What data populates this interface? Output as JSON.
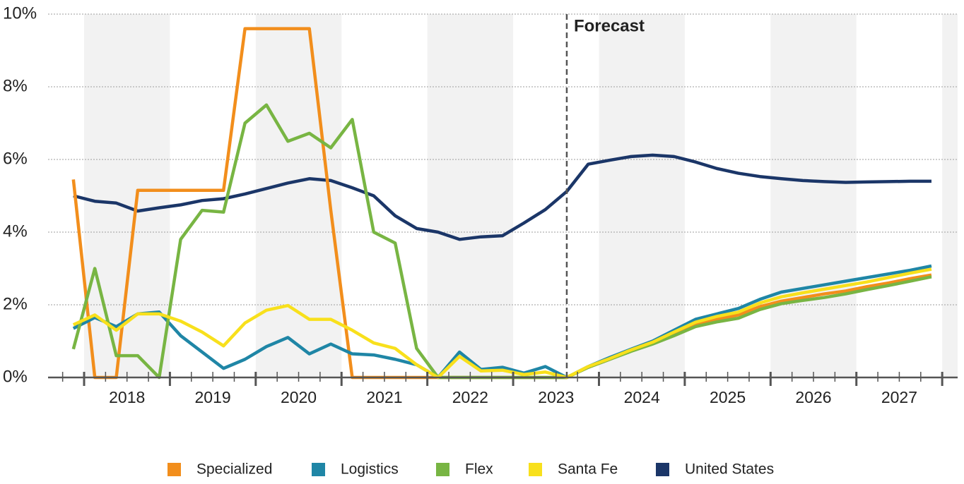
{
  "chart_data": {
    "type": "line",
    "x": [
      2017.875,
      2018.125,
      2018.375,
      2018.625,
      2018.875,
      2019.125,
      2019.375,
      2019.625,
      2019.875,
      2020.125,
      2020.375,
      2020.625,
      2020.875,
      2021.125,
      2021.375,
      2021.625,
      2021.875,
      2022.125,
      2022.375,
      2022.625,
      2022.875,
      2023.125,
      2023.375,
      2023.625,
      2023.875,
      2024.125,
      2024.375,
      2024.625,
      2024.875,
      2025.125,
      2025.375,
      2025.625,
      2025.875,
      2026.125,
      2026.375,
      2026.625,
      2026.875,
      2027.125,
      2027.375,
      2027.625,
      2027.875
    ],
    "xlim": [
      2017.58,
      2028.18
    ],
    "xticks": [
      {
        "value": 2018.5,
        "label": "2018"
      },
      {
        "value": 2019.5,
        "label": "2019"
      },
      {
        "value": 2020.5,
        "label": "2020"
      },
      {
        "value": 2021.5,
        "label": "2021"
      },
      {
        "value": 2022.5,
        "label": "2022"
      },
      {
        "value": 2023.5,
        "label": "2023"
      },
      {
        "value": 2024.5,
        "label": "2024"
      },
      {
        "value": 2025.5,
        "label": "2025"
      },
      {
        "value": 2026.5,
        "label": "2026"
      },
      {
        "value": 2027.5,
        "label": "2027"
      }
    ],
    "ylim": [
      0,
      10
    ],
    "yticks": [
      {
        "value": 0,
        "label": "0%"
      },
      {
        "value": 2,
        "label": "2%"
      },
      {
        "value": 4,
        "label": "4%"
      },
      {
        "value": 6,
        "label": "6%"
      },
      {
        "value": 8,
        "label": "8%"
      },
      {
        "value": 10,
        "label": "10%"
      }
    ],
    "grid": true,
    "legend": "bottom",
    "forecast": {
      "label": "Forecast",
      "x": 2023.625
    },
    "series": [
      {
        "name": "Specialized",
        "color": "#f28e1c",
        "values": [
          5.45,
          0,
          0,
          5.15,
          5.15,
          5.15,
          5.15,
          5.15,
          9.6,
          9.6,
          9.6,
          9.6,
          4.6,
          0,
          0,
          0,
          0,
          0,
          0,
          0,
          0,
          0,
          0,
          0,
          0.28,
          0.5,
          0.74,
          0.94,
          1.2,
          1.45,
          1.6,
          1.72,
          1.95,
          2.1,
          2.2,
          2.3,
          2.38,
          2.5,
          2.6,
          2.72,
          2.82
        ]
      },
      {
        "name": "Logistics",
        "color": "#1f86a6",
        "values": [
          1.35,
          1.65,
          1.4,
          1.75,
          1.8,
          1.15,
          0.7,
          0.25,
          0.5,
          0.85,
          1.1,
          0.65,
          0.92,
          0.65,
          0.62,
          0.5,
          0.35,
          0,
          0.7,
          0.22,
          0.28,
          0.12,
          0.3,
          0,
          0.3,
          0.55,
          0.78,
          1.0,
          1.3,
          1.6,
          1.75,
          1.9,
          2.15,
          2.35,
          2.45,
          2.55,
          2.65,
          2.75,
          2.85,
          2.95,
          3.07
        ]
      },
      {
        "name": "Flex",
        "color": "#78b543",
        "values": [
          0.78,
          3.0,
          0.6,
          0.6,
          0,
          3.8,
          4.6,
          4.55,
          7.0,
          7.5,
          6.5,
          6.72,
          6.32,
          7.1,
          4.0,
          3.7,
          0.8,
          0,
          0,
          0,
          0,
          0,
          0,
          0,
          0.28,
          0.5,
          0.72,
          0.92,
          1.15,
          1.4,
          1.53,
          1.63,
          1.87,
          2.03,
          2.12,
          2.2,
          2.3,
          2.42,
          2.53,
          2.65,
          2.77
        ]
      },
      {
        "name": "Santa Fe",
        "color": "#f8e01c",
        "values": [
          1.45,
          1.72,
          1.3,
          1.75,
          1.75,
          1.55,
          1.25,
          0.87,
          1.5,
          1.85,
          1.98,
          1.6,
          1.6,
          1.3,
          0.95,
          0.8,
          0.35,
          0,
          0.58,
          0.18,
          0.2,
          0.08,
          0.15,
          0,
          0.3,
          0.52,
          0.76,
          0.97,
          1.25,
          1.52,
          1.68,
          1.8,
          2.05,
          2.22,
          2.33,
          2.43,
          2.53,
          2.63,
          2.75,
          2.87,
          2.98
        ]
      },
      {
        "name": "United States",
        "color": "#1b3668",
        "values": [
          5.0,
          4.85,
          4.8,
          4.58,
          4.67,
          4.75,
          4.87,
          4.92,
          5.05,
          5.2,
          5.35,
          5.47,
          5.42,
          5.22,
          5.0,
          4.45,
          4.1,
          4.0,
          3.8,
          3.87,
          3.9,
          4.25,
          4.62,
          5.12,
          5.87,
          5.98,
          6.08,
          6.12,
          6.08,
          5.93,
          5.75,
          5.62,
          5.53,
          5.47,
          5.42,
          5.39,
          5.37,
          5.38,
          5.39,
          5.4,
          5.4
        ]
      }
    ]
  }
}
